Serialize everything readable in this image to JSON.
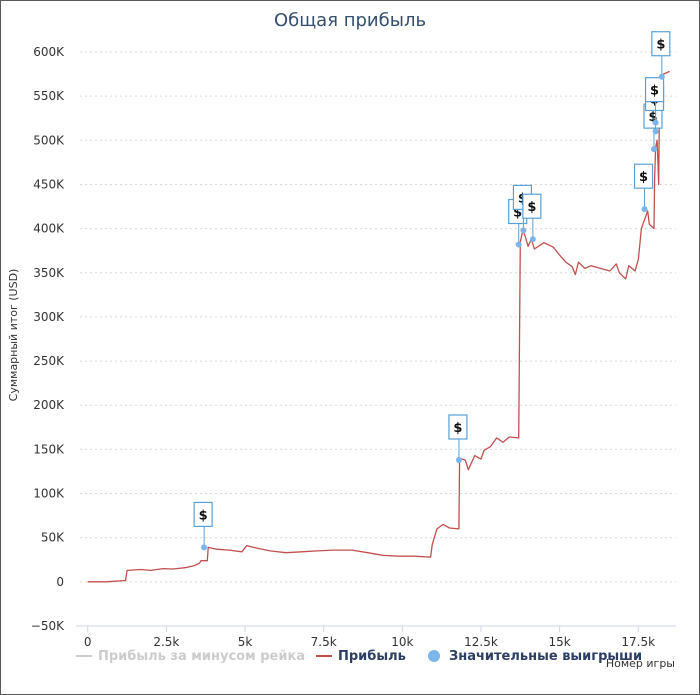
{
  "chart_data": {
    "type": "line",
    "title": "Общая прибыль",
    "xlabel": "Номер игры",
    "ylabel": "Суммарный итог (USD)",
    "xlim": [
      -500,
      18700
    ],
    "ylim": [
      -50000,
      600000
    ],
    "x_ticks": [
      0,
      2500,
      5000,
      7500,
      10000,
      12500,
      15000,
      17500
    ],
    "x_tick_labels": [
      "0",
      "2.5k",
      "5k",
      "7.5k",
      "10k",
      "12.5k",
      "15k",
      "17.5k"
    ],
    "y_ticks": [
      -50000,
      0,
      50000,
      100000,
      150000,
      200000,
      250000,
      300000,
      350000,
      400000,
      450000,
      500000,
      550000,
      600000
    ],
    "y_tick_labels": [
      "−50K",
      "0",
      "50K",
      "100K",
      "150K",
      "200K",
      "250K",
      "300K",
      "350K",
      "400K",
      "450K",
      "500K",
      "550K",
      "600K"
    ],
    "grid": true,
    "legend_position": "bottom",
    "legend": [
      {
        "label": "Прибыль за минусом рейка",
        "color": "#cccccc",
        "symbol": "line",
        "enabled": false
      },
      {
        "label": "Прибыль",
        "color": "#c0504d",
        "symbol": "line",
        "enabled": true
      },
      {
        "label": "Значительные выигрыши",
        "color": "#7cb5ec",
        "symbol": "circle",
        "enabled": true
      }
    ],
    "series": [
      {
        "name": "Прибыль",
        "color": "#c0504d",
        "points": [
          [
            0,
            0
          ],
          [
            600,
            0
          ],
          [
            1200,
            1500
          ],
          [
            1250,
            13000
          ],
          [
            1700,
            14000
          ],
          [
            2000,
            13000
          ],
          [
            2400,
            15000
          ],
          [
            2700,
            14500
          ],
          [
            3100,
            16000
          ],
          [
            3400,
            18500
          ],
          [
            3550,
            21000
          ],
          [
            3600,
            24000
          ],
          [
            3800,
            24000
          ],
          [
            3830,
            39000
          ],
          [
            4100,
            37000
          ],
          [
            4500,
            36000
          ],
          [
            4900,
            34000
          ],
          [
            5050,
            41000
          ],
          [
            5400,
            38000
          ],
          [
            5800,
            35000
          ],
          [
            6300,
            33000
          ],
          [
            6800,
            34000
          ],
          [
            7300,
            35000
          ],
          [
            7800,
            36000
          ],
          [
            8400,
            36000
          ],
          [
            8900,
            33000
          ],
          [
            9400,
            30000
          ],
          [
            9900,
            29000
          ],
          [
            10400,
            29000
          ],
          [
            10900,
            28000
          ],
          [
            10950,
            42000
          ],
          [
            11100,
            60000
          ],
          [
            11300,
            65000
          ],
          [
            11500,
            61000
          ],
          [
            11800,
            60000
          ],
          [
            11820,
            140000
          ],
          [
            12000,
            138000
          ],
          [
            12100,
            127000
          ],
          [
            12300,
            143000
          ],
          [
            12500,
            139000
          ],
          [
            12600,
            149000
          ],
          [
            12800,
            153000
          ],
          [
            13000,
            163000
          ],
          [
            13200,
            158000
          ],
          [
            13400,
            164000
          ],
          [
            13700,
            163000
          ],
          [
            13750,
            385000
          ],
          [
            13830,
            398000
          ],
          [
            13900,
            392000
          ],
          [
            14000,
            380000
          ],
          [
            14100,
            388000
          ],
          [
            14200,
            377000
          ],
          [
            14500,
            384000
          ],
          [
            14800,
            379000
          ],
          [
            15000,
            370000
          ],
          [
            15200,
            362000
          ],
          [
            15400,
            357000
          ],
          [
            15500,
            348000
          ],
          [
            15600,
            362000
          ],
          [
            15800,
            355000
          ],
          [
            16000,
            358000
          ],
          [
            16300,
            355000
          ],
          [
            16600,
            352000
          ],
          [
            16800,
            360000
          ],
          [
            16900,
            350000
          ],
          [
            17100,
            343000
          ],
          [
            17200,
            358000
          ],
          [
            17400,
            352000
          ],
          [
            17500,
            365000
          ],
          [
            17600,
            400000
          ],
          [
            17700,
            410000
          ],
          [
            17800,
            420000
          ],
          [
            17850,
            405000
          ],
          [
            18000,
            400000
          ],
          [
            18020,
            455000
          ],
          [
            18050,
            492000
          ],
          [
            18100,
            500000
          ],
          [
            18130,
            470000
          ],
          [
            18150,
            450000
          ],
          [
            18180,
            565000
          ],
          [
            18300,
            575000
          ],
          [
            18500,
            578000
          ]
        ]
      }
    ],
    "notable_wins": [
      {
        "x": 3700,
        "y": 39000,
        "label": "$"
      },
      {
        "x": 11800,
        "y": 138000,
        "label": "$"
      },
      {
        "x": 13700,
        "y": 382000,
        "label": "$"
      },
      {
        "x": 13850,
        "y": 398000,
        "label": "$"
      },
      {
        "x": 14150,
        "y": 388000,
        "label": "$"
      },
      {
        "x": 17700,
        "y": 422000,
        "label": "$"
      },
      {
        "x": 18000,
        "y": 490000,
        "label": "$"
      },
      {
        "x": 18050,
        "y": 510000,
        "label": "$"
      },
      {
        "x": 18050,
        "y": 520000,
        "label": "$"
      },
      {
        "x": 18250,
        "y": 572000,
        "label": "$"
      }
    ]
  }
}
